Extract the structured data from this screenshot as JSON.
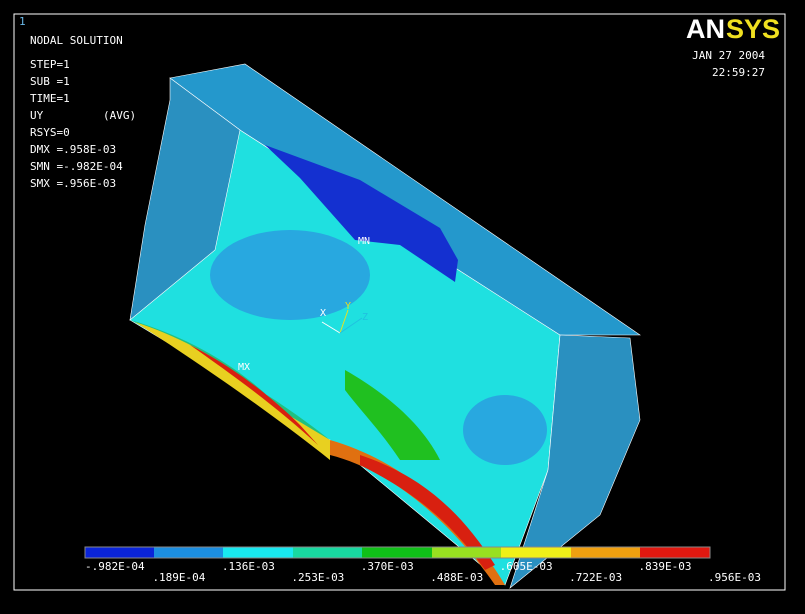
{
  "window_number": "1",
  "info": [
    "NODAL SOLUTION",
    "STEP=1",
    "SUB =1",
    "TIME=1",
    "UY",
    "(AVG)",
    "RSYS=0",
    "DMX =.958E-03",
    "SMN =-.982E-04",
    "SMX =.956E-03"
  ],
  "logo": {
    "left": "AN",
    "right": "SYS"
  },
  "date": "JAN 27 2004",
  "time": "22:59:27",
  "markers": {
    "min": "MN",
    "max": "MX"
  },
  "triad": {
    "x": "X",
    "y": "Y",
    "z": "Z"
  },
  "legend": {
    "labels": [
      "-.982E-04",
      ".189E-04",
      ".136E-03",
      ".253E-03",
      ".370E-03",
      ".488E-03",
      ".605E-03",
      ".722E-03",
      ".839E-03",
      ".956E-03"
    ]
  }
}
